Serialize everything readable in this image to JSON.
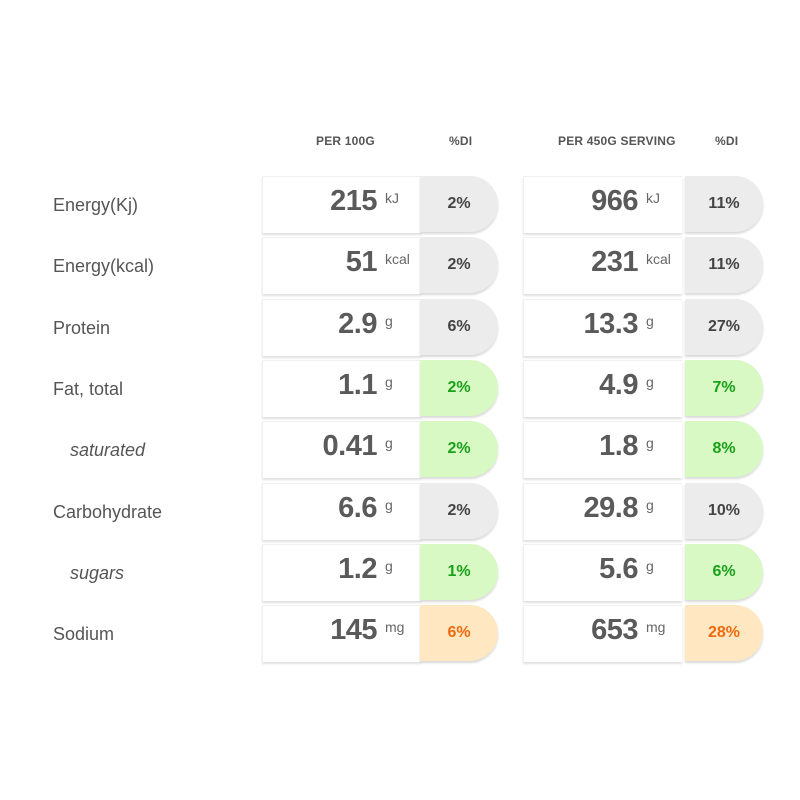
{
  "headers": {
    "per100": "PER 100G",
    "di1": "%DI",
    "perServing": "PER 450G SERVING",
    "di2": "%DI"
  },
  "colors": {
    "neutral_bg": "#ececec",
    "good_bg": "#d8f8c4",
    "good_text": "#1aa11a",
    "warn_bg": "#ffe7c2",
    "warn_text": "#ee6a10"
  },
  "rows": [
    {
      "label": "Energy(Kj)",
      "sub": false,
      "per100": {
        "value": "215",
        "unit": "kJ",
        "di": "2%",
        "status": "neutral"
      },
      "serving": {
        "value": "966",
        "unit": "kJ",
        "di": "11%",
        "status": "neutral"
      }
    },
    {
      "label": "Energy(kcal)",
      "sub": false,
      "per100": {
        "value": "51",
        "unit": "kcal",
        "di": "2%",
        "status": "neutral"
      },
      "serving": {
        "value": "231",
        "unit": "kcal",
        "di": "11%",
        "status": "neutral"
      }
    },
    {
      "label": "Protein",
      "sub": false,
      "per100": {
        "value": "2.9",
        "unit": "g",
        "di": "6%",
        "status": "neutral"
      },
      "serving": {
        "value": "13.3",
        "unit": "g",
        "di": "27%",
        "status": "neutral"
      }
    },
    {
      "label": "Fat, total",
      "sub": false,
      "per100": {
        "value": "1.1",
        "unit": "g",
        "di": "2%",
        "status": "good"
      },
      "serving": {
        "value": "4.9",
        "unit": "g",
        "di": "7%",
        "status": "good"
      }
    },
    {
      "label": "saturated",
      "sub": true,
      "per100": {
        "value": "0.41",
        "unit": "g",
        "di": "2%",
        "status": "good"
      },
      "serving": {
        "value": "1.8",
        "unit": "g",
        "di": "8%",
        "status": "good"
      }
    },
    {
      "label": "Carbohydrate",
      "sub": false,
      "per100": {
        "value": "6.6",
        "unit": "g",
        "di": "2%",
        "status": "neutral"
      },
      "serving": {
        "value": "29.8",
        "unit": "g",
        "di": "10%",
        "status": "neutral"
      }
    },
    {
      "label": "sugars",
      "sub": true,
      "per100": {
        "value": "1.2",
        "unit": "g",
        "di": "1%",
        "status": "good"
      },
      "serving": {
        "value": "5.6",
        "unit": "g",
        "di": "6%",
        "status": "good"
      }
    },
    {
      "label": "Sodium",
      "sub": false,
      "per100": {
        "value": "145",
        "unit": "mg",
        "di": "6%",
        "status": "warn"
      },
      "serving": {
        "value": "653",
        "unit": "mg",
        "di": "28%",
        "status": "warn"
      }
    }
  ]
}
